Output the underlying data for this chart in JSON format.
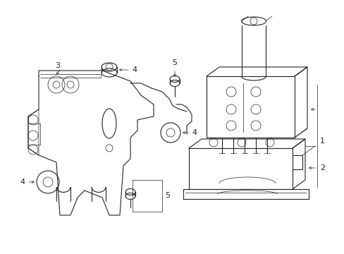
{
  "bg_color": "#ffffff",
  "line_color": "#222222",
  "lw": 0.8,
  "tlw": 0.5,
  "fs": 8,
  "figsize": [
    4.89,
    3.6
  ],
  "dpi": 100
}
